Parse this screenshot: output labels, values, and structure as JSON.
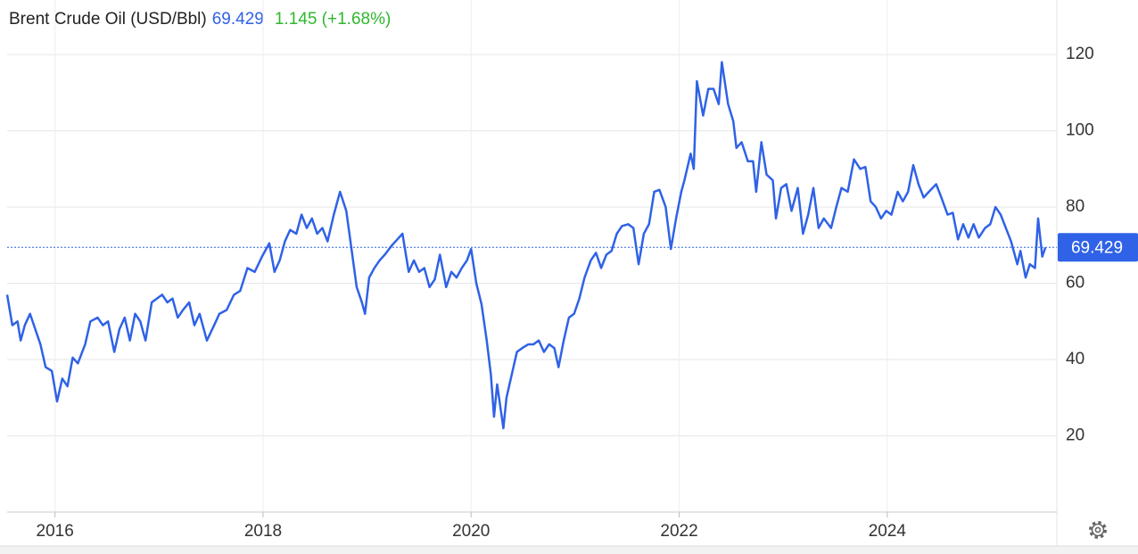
{
  "chart_data": {
    "type": "line",
    "title": "Brent Crude Oil (USD/Bbl)",
    "price": 69.429,
    "change": "1.145 (+1.68%)",
    "color": "#2f62e6",
    "grid": true,
    "xlim": [
      2015.54,
      2025.63
    ],
    "xticks": [
      2016,
      2018,
      2020,
      2022,
      2024
    ],
    "ylim": [
      0,
      134.3
    ],
    "yticks": [
      20,
      40,
      60,
      80,
      100,
      120
    ],
    "x": [
      2015.54,
      2015.59,
      2015.64,
      2015.67,
      2015.71,
      2015.76,
      2015.81,
      2015.86,
      2015.91,
      2015.97,
      2016.02,
      2016.07,
      2016.12,
      2016.17,
      2016.22,
      2016.29,
      2016.34,
      2016.41,
      2016.46,
      2016.51,
      2016.57,
      2016.62,
      2016.67,
      2016.72,
      2016.77,
      2016.82,
      2016.87,
      2016.93,
      2016.98,
      2017.03,
      2017.08,
      2017.13,
      2017.18,
      2017.23,
      2017.29,
      2017.34,
      2017.39,
      2017.46,
      2017.53,
      2017.58,
      2017.65,
      2017.72,
      2017.78,
      2017.85,
      2017.92,
      2017.99,
      2018.06,
      2018.11,
      2018.16,
      2018.21,
      2018.26,
      2018.32,
      2018.37,
      2018.42,
      2018.47,
      2018.52,
      2018.57,
      2018.62,
      2018.68,
      2018.74,
      2018.8,
      2018.85,
      2018.9,
      2018.95,
      2018.98,
      2019.02,
      2019.07,
      2019.12,
      2019.17,
      2019.24,
      2019.29,
      2019.34,
      2019.4,
      2019.45,
      2019.5,
      2019.55,
      2019.6,
      2019.65,
      2019.7,
      2019.76,
      2019.81,
      2019.86,
      2019.91,
      2019.96,
      2020.0,
      2020.05,
      2020.1,
      2020.15,
      2020.19,
      2020.22,
      2020.25,
      2020.31,
      2020.34,
      2020.39,
      2020.44,
      2020.49,
      2020.55,
      2020.6,
      2020.65,
      2020.7,
      2020.75,
      2020.8,
      2020.84,
      2020.89,
      2020.94,
      2020.99,
      2021.04,
      2021.09,
      2021.15,
      2021.2,
      2021.25,
      2021.3,
      2021.35,
      2021.4,
      2021.45,
      2021.51,
      2021.56,
      2021.61,
      2021.66,
      2021.71,
      2021.76,
      2021.81,
      2021.87,
      2021.92,
      2021.97,
      2022.02,
      2022.05,
      2022.11,
      2022.14,
      2022.17,
      2022.23,
      2022.28,
      2022.33,
      2022.38,
      2022.41,
      2022.47,
      2022.52,
      2022.55,
      2022.6,
      2022.66,
      2022.71,
      2022.74,
      2022.79,
      2022.84,
      2022.9,
      2022.93,
      2022.98,
      2023.03,
      2023.08,
      2023.14,
      2023.19,
      2023.24,
      2023.29,
      2023.34,
      2023.39,
      2023.46,
      2023.51,
      2023.56,
      2023.62,
      2023.68,
      2023.74,
      2023.79,
      2023.84,
      2023.89,
      2023.94,
      2023.99,
      2024.04,
      2024.1,
      2024.15,
      2024.2,
      2024.25,
      2024.3,
      2024.35,
      2024.4,
      2024.47,
      2024.52,
      2024.58,
      2024.63,
      2024.68,
      2024.73,
      2024.78,
      2024.83,
      2024.88,
      2024.94,
      2024.99,
      2025.04,
      2025.09,
      2025.14,
      2025.19,
      2025.25,
      2025.28,
      2025.33,
      2025.37,
      2025.42,
      2025.45,
      2025.49,
      2025.52
    ],
    "values": [
      57,
      49,
      50,
      45,
      49,
      52,
      48,
      44,
      38,
      37,
      29,
      35,
      33,
      40.5,
      39,
      44,
      50,
      51,
      49,
      50,
      42,
      48,
      51,
      45,
      52,
      50,
      45,
      55,
      56,
      57,
      55,
      56,
      51,
      53,
      55,
      49,
      52,
      45,
      49,
      52,
      53,
      57,
      58,
      64,
      63,
      67,
      70.5,
      63,
      66,
      71,
      74,
      73,
      78,
      74.5,
      77,
      73,
      74.5,
      71,
      78,
      84,
      79,
      69,
      59,
      55,
      52,
      61.5,
      64,
      66,
      67.5,
      70,
      71.5,
      73,
      63,
      66,
      63,
      64,
      59,
      61,
      67.5,
      59,
      63,
      61.5,
      64,
      66,
      69,
      60,
      54.5,
      45,
      36,
      25,
      33.5,
      22,
      30,
      36,
      42,
      43,
      44,
      44,
      45,
      42,
      44,
      43,
      38,
      45,
      51,
      52,
      56,
      61.5,
      66,
      68,
      64,
      67.5,
      68.5,
      73,
      75,
      75.5,
      74.5,
      65,
      73,
      75.5,
      84,
      84.5,
      80,
      69,
      77,
      84,
      87,
      94,
      90,
      113,
      104,
      111,
      111,
      107,
      118,
      107,
      102.5,
      95.5,
      97,
      92,
      92,
      84,
      97,
      88.5,
      87,
      77,
      85,
      86,
      79,
      85,
      73,
      78,
      85,
      74.5,
      77,
      74.5,
      80,
      85,
      84,
      92.5,
      90,
      90.5,
      81.5,
      80,
      77,
      79,
      78,
      84,
      81.5,
      84,
      91,
      86,
      82.5,
      84,
      86,
      82.5,
      78,
      78.5,
      71.5,
      75.5,
      72,
      75.5,
      72,
      74.5,
      75.5,
      80,
      78,
      74.5,
      71,
      65,
      68.5,
      61.5,
      65,
      64,
      77,
      67,
      69.4
    ]
  }
}
